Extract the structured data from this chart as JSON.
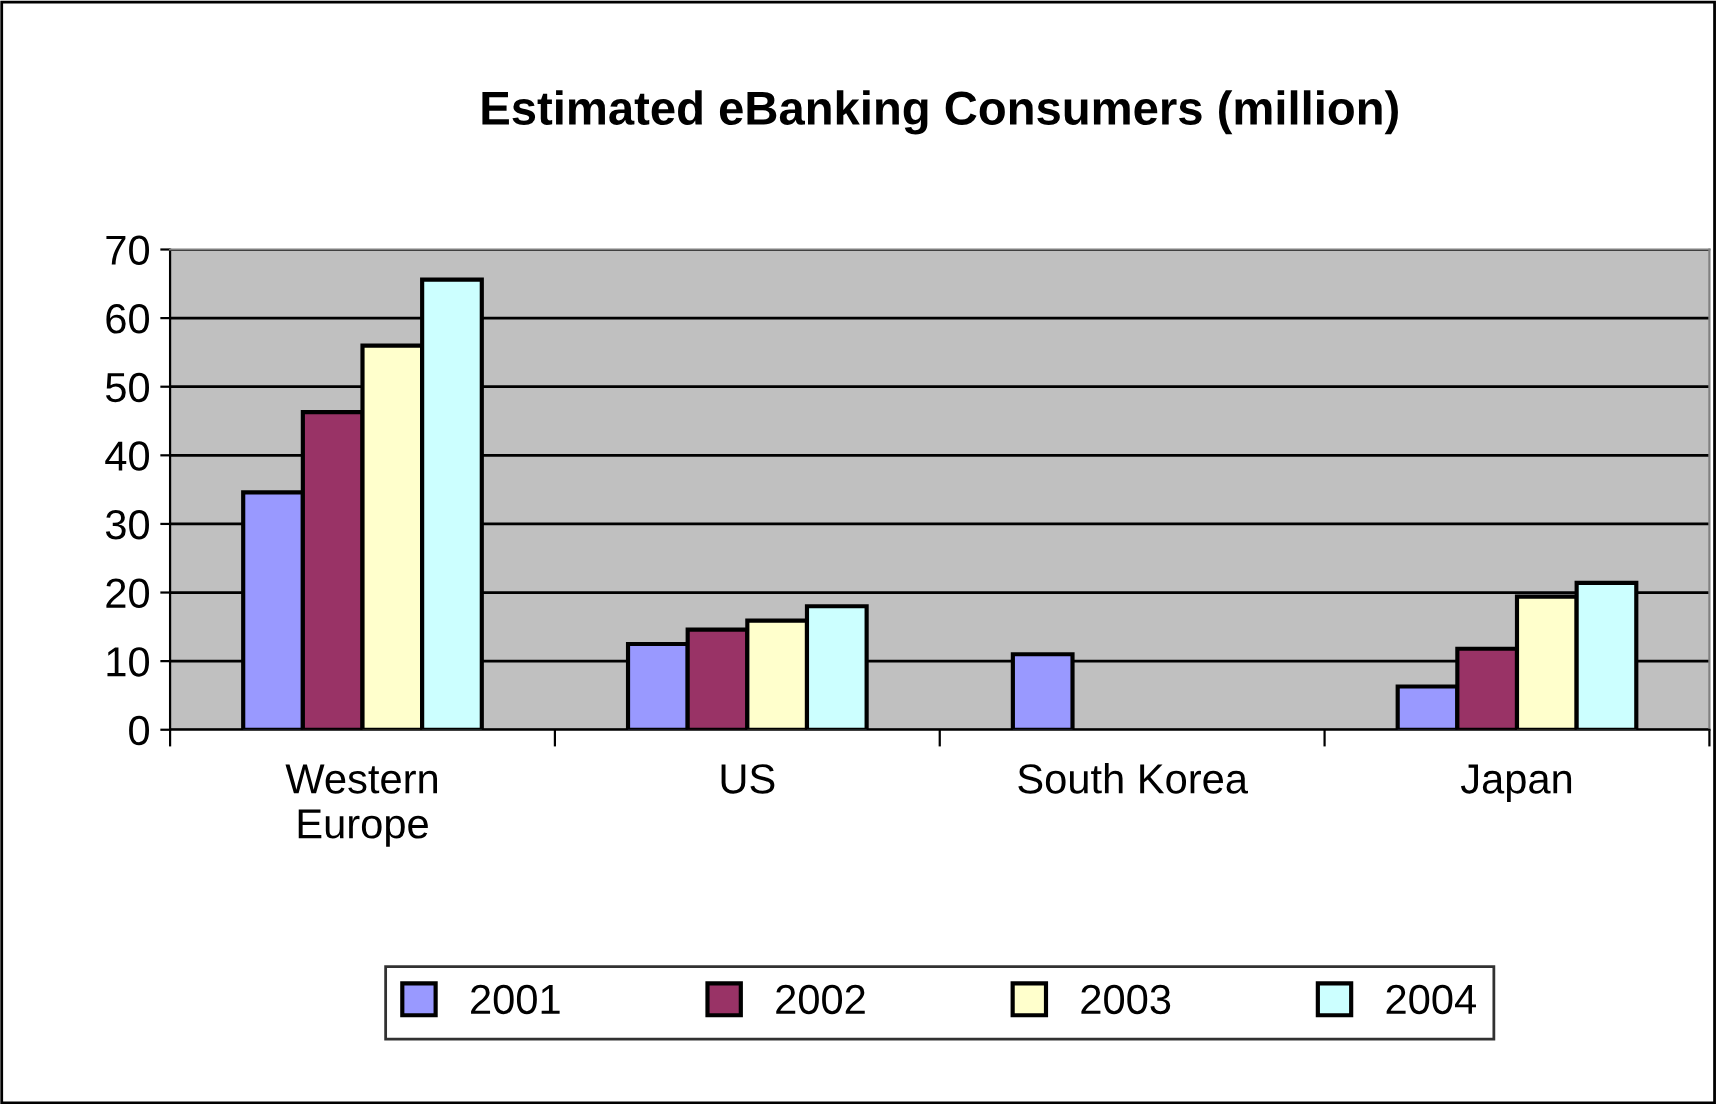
{
  "chart_data": {
    "type": "bar",
    "title": "Estimated eBanking Consumers (million)",
    "categories": [
      "Western\nEurope",
      "US",
      "South Korea",
      "Japan"
    ],
    "series": [
      {
        "name": "2001",
        "color": "#9999ff",
        "values": [
          34.6,
          12.5,
          11.0,
          6.3
        ]
      },
      {
        "name": "2002",
        "color": "#993366",
        "values": [
          46.3,
          14.6,
          null,
          11.8
        ]
      },
      {
        "name": "2003",
        "color": "#ffffcc",
        "values": [
          56.0,
          15.9,
          null,
          19.4
        ]
      },
      {
        "name": "2004",
        "color": "#ccffff",
        "values": [
          65.6,
          18.0,
          null,
          21.4
        ]
      }
    ],
    "ylim": [
      0,
      70
    ],
    "yticks": [
      0,
      10,
      20,
      30,
      40,
      50,
      60,
      70
    ],
    "grid": "y",
    "legend": "bottom"
  }
}
